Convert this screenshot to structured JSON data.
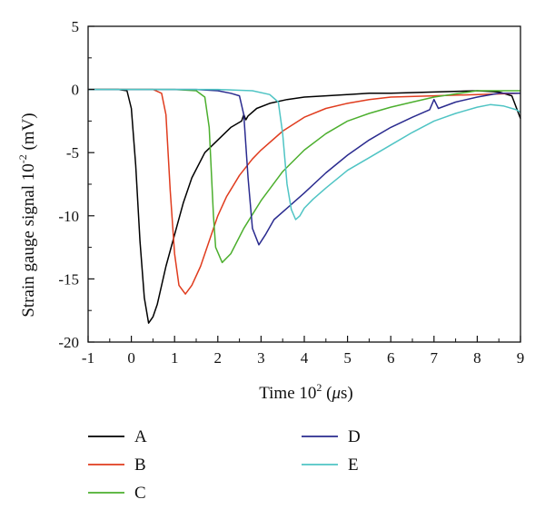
{
  "chart_data": {
    "type": "line",
    "title": "",
    "xlabel_main": "Time 10",
    "xlabel_sup": "2",
    "xlabel_unit_open": " (",
    "xlabel_unit_mu": "μ",
    "xlabel_unit_rest": "s)",
    "ylabel_main": "Strain gauge signal 10",
    "ylabel_sup": "-2",
    "ylabel_unit": " (mV)",
    "xlim": [
      -1,
      9
    ],
    "ylim": [
      -20,
      5
    ],
    "xticks": [
      -1,
      0,
      1,
      2,
      3,
      4,
      5,
      6,
      7,
      8,
      9
    ],
    "yticks": [
      -20,
      -15,
      -10,
      -5,
      0,
      5
    ],
    "xtick_labels": [
      "-1",
      "0",
      "1",
      "2",
      "3",
      "4",
      "5",
      "6",
      "7",
      "8",
      "9"
    ],
    "ytick_labels": [
      "-20",
      "-15",
      "-10",
      "-5",
      "0",
      "5"
    ],
    "grid": false,
    "legend_position": "below",
    "series": [
      {
        "name": "A",
        "color": "#000000",
        "x": [
          -1,
          -0.6,
          -0.3,
          -0.1,
          0.0,
          0.1,
          0.2,
          0.3,
          0.4,
          0.5,
          0.6,
          0.8,
          1.0,
          1.2,
          1.4,
          1.7,
          2.0,
          2.3,
          2.55,
          2.6,
          2.65,
          2.7,
          2.9,
          3.2,
          3.6,
          4.0,
          4.5,
          5.0,
          5.5,
          6.0,
          7.0,
          8.0,
          8.5,
          8.8,
          9.0
        ],
        "y": [
          0,
          0,
          0,
          -0.1,
          -1.5,
          -6,
          -12,
          -16.5,
          -18.5,
          -18,
          -17,
          -14,
          -11.5,
          -9,
          -7,
          -5,
          -4,
          -3,
          -2.5,
          -2,
          -2.4,
          -2.1,
          -1.5,
          -1.1,
          -0.8,
          -0.6,
          -0.5,
          -0.4,
          -0.3,
          -0.3,
          -0.2,
          -0.1,
          -0.2,
          -0.5,
          -2.3
        ]
      },
      {
        "name": "B",
        "color": "#e03c1e",
        "x": [
          -1,
          0,
          0.5,
          0.7,
          0.8,
          0.9,
          1.0,
          1.1,
          1.25,
          1.4,
          1.6,
          1.8,
          2.0,
          2.2,
          2.5,
          2.8,
          3.0,
          3.5,
          4.0,
          4.5,
          5.0,
          5.5,
          6.0,
          7.0,
          8.0,
          9.0
        ],
        "y": [
          0,
          0,
          0,
          -0.3,
          -2,
          -8,
          -13,
          -15.5,
          -16.2,
          -15.5,
          -14,
          -12,
          -10,
          -8.5,
          -6.8,
          -5.5,
          -4.8,
          -3.3,
          -2.2,
          -1.5,
          -1.1,
          -0.8,
          -0.6,
          -0.5,
          -0.4,
          -0.3
        ]
      },
      {
        "name": "C",
        "color": "#4caf2e",
        "x": [
          -1,
          0,
          1.0,
          1.5,
          1.7,
          1.8,
          1.9,
          1.95,
          2.1,
          2.3,
          2.6,
          3.0,
          3.5,
          4.0,
          4.5,
          5.0,
          5.5,
          6.0,
          6.5,
          7.0,
          8.0,
          9.0
        ],
        "y": [
          0,
          0,
          0,
          -0.1,
          -0.6,
          -3,
          -10,
          -12.5,
          -13.7,
          -13,
          -11,
          -8.8,
          -6.5,
          -4.8,
          -3.5,
          -2.5,
          -1.9,
          -1.4,
          -1.0,
          -0.6,
          -0.1,
          -0.1
        ]
      },
      {
        "name": "D",
        "color": "#2a2b8f",
        "x": [
          -1,
          0,
          1.5,
          2.0,
          2.3,
          2.5,
          2.6,
          2.7,
          2.8,
          2.95,
          3.1,
          3.3,
          3.6,
          4.0,
          4.5,
          5.0,
          5.5,
          6.0,
          6.5,
          6.9,
          7.0,
          7.1,
          7.5,
          8.0,
          8.5,
          9.0
        ],
        "y": [
          0,
          0,
          0,
          -0.1,
          -0.3,
          -0.5,
          -2,
          -7,
          -11,
          -12.3,
          -11.5,
          -10.3,
          -9.4,
          -8.2,
          -6.6,
          -5.2,
          -4.0,
          -3.0,
          -2.2,
          -1.6,
          -0.8,
          -1.5,
          -1.0,
          -0.6,
          -0.3,
          -0.3
        ]
      },
      {
        "name": "E",
        "color": "#4fc4c4",
        "x": [
          -1,
          0,
          2.0,
          2.8,
          3.2,
          3.4,
          3.5,
          3.6,
          3.7,
          3.8,
          3.9,
          4.0,
          4.2,
          4.5,
          5.0,
          5.5,
          6.0,
          6.5,
          7.0,
          7.5,
          8.0,
          8.3,
          8.6,
          8.9,
          9.0
        ],
        "y": [
          0,
          0,
          0,
          -0.1,
          -0.4,
          -1.0,
          -3.5,
          -7.5,
          -9.5,
          -10.3,
          -10.0,
          -9.4,
          -8.7,
          -7.8,
          -6.4,
          -5.4,
          -4.4,
          -3.4,
          -2.5,
          -1.9,
          -1.4,
          -1.2,
          -1.3,
          -1.6,
          -1.8
        ]
      }
    ]
  }
}
